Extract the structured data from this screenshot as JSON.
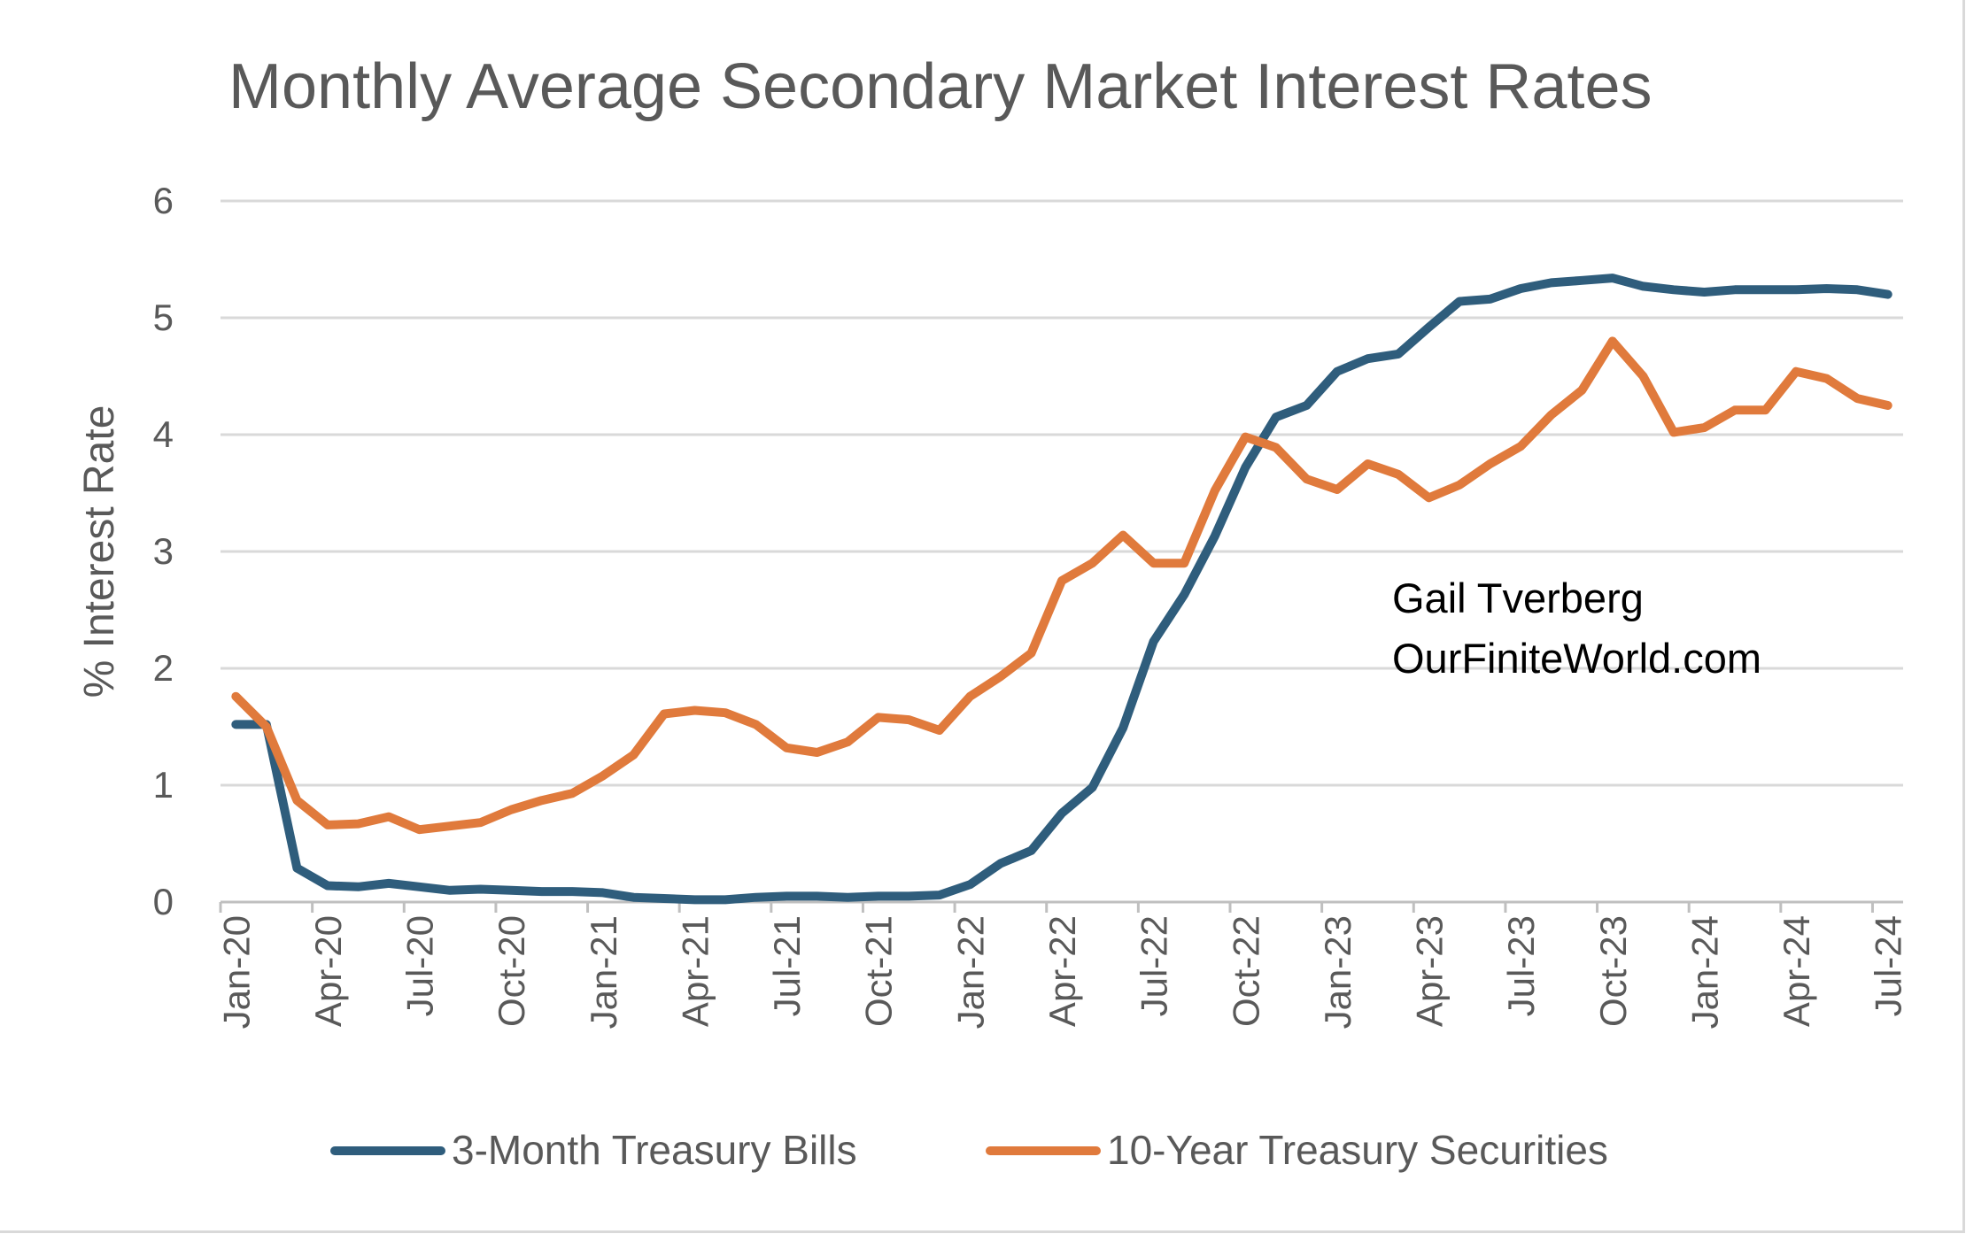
{
  "chart_data": {
    "type": "line",
    "title": "Monthly Average Secondary Market Interest Rates",
    "xlabel": "",
    "ylabel": "% Interest Rate",
    "ylim": [
      0,
      6
    ],
    "yticks": [
      0,
      1,
      2,
      3,
      4,
      5,
      6
    ],
    "grid": true,
    "legend_position": "bottom",
    "annotation": [
      "Gail Tverberg",
      "OurFiniteWorld.com"
    ],
    "x": [
      "Jan-20",
      "Feb-20",
      "Mar-20",
      "Apr-20",
      "May-20",
      "Jun-20",
      "Jul-20",
      "Aug-20",
      "Sep-20",
      "Oct-20",
      "Nov-20",
      "Dec-20",
      "Jan-21",
      "Feb-21",
      "Mar-21",
      "Apr-21",
      "May-21",
      "Jun-21",
      "Jul-21",
      "Aug-21",
      "Sep-21",
      "Oct-21",
      "Nov-21",
      "Dec-21",
      "Jan-22",
      "Feb-22",
      "Mar-22",
      "Apr-22",
      "May-22",
      "Jun-22",
      "Jul-22",
      "Aug-22",
      "Sep-22",
      "Oct-22",
      "Nov-22",
      "Dec-22",
      "Jan-23",
      "Feb-23",
      "Mar-23",
      "Apr-23",
      "May-23",
      "Jun-23",
      "Jul-23",
      "Aug-23",
      "Sep-23",
      "Oct-23",
      "Nov-23",
      "Dec-23",
      "Jan-24",
      "Feb-24",
      "Mar-24",
      "Apr-24",
      "May-24",
      "Jun-24",
      "Jul-24"
    ],
    "xtick_labels": [
      "Jan-20",
      "Apr-20",
      "Jul-20",
      "Oct-20",
      "Jan-21",
      "Apr-21",
      "Jul-21",
      "Oct-21",
      "Jan-22",
      "Apr-22",
      "Jul-22",
      "Oct-22",
      "Jan-23",
      "Apr-23",
      "Jul-23",
      "Oct-23",
      "Jan-24",
      "Apr-24",
      "Jul-24"
    ],
    "series": [
      {
        "name": "3-Month Treasury Bills",
        "color": "#2f5d7c",
        "values": [
          1.52,
          1.52,
          0.29,
          0.14,
          0.13,
          0.16,
          0.13,
          0.1,
          0.11,
          0.1,
          0.09,
          0.09,
          0.08,
          0.04,
          0.03,
          0.02,
          0.02,
          0.04,
          0.05,
          0.05,
          0.04,
          0.05,
          0.05,
          0.06,
          0.15,
          0.33,
          0.44,
          0.76,
          0.98,
          1.49,
          2.23,
          2.63,
          3.13,
          3.72,
          4.15,
          4.25,
          4.54,
          4.65,
          4.69,
          4.92,
          5.14,
          5.16,
          5.25,
          5.3,
          5.32,
          5.34,
          5.27,
          5.24,
          5.22,
          5.24,
          5.24,
          5.24,
          5.25,
          5.24,
          5.2
        ]
      },
      {
        "name": "10-Year Treasury Securities",
        "color": "#e07a3c",
        "values": [
          1.76,
          1.5,
          0.87,
          0.66,
          0.67,
          0.73,
          0.62,
          0.65,
          0.68,
          0.79,
          0.87,
          0.93,
          1.08,
          1.26,
          1.61,
          1.64,
          1.62,
          1.52,
          1.32,
          1.28,
          1.37,
          1.58,
          1.56,
          1.47,
          1.76,
          1.93,
          2.13,
          2.75,
          2.9,
          3.14,
          2.9,
          2.9,
          3.52,
          3.98,
          3.89,
          3.62,
          3.53,
          3.75,
          3.66,
          3.46,
          3.57,
          3.75,
          3.9,
          4.17,
          4.38,
          4.8,
          4.5,
          4.02,
          4.06,
          4.21,
          4.21,
          4.54,
          4.48,
          4.31,
          4.25
        ]
      }
    ]
  }
}
